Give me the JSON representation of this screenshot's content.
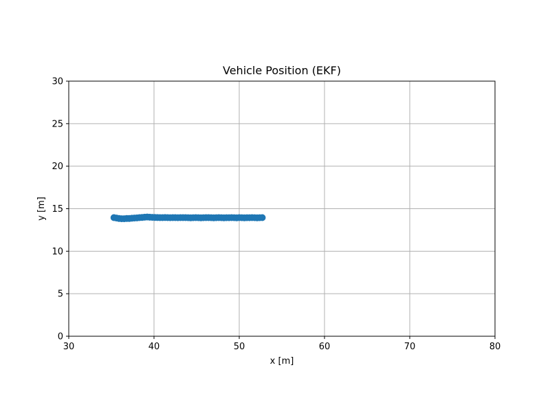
{
  "chart_data": {
    "type": "scatter",
    "title": "Vehicle Position (EKF)",
    "xlabel": "x [m]",
    "ylabel": "y [m]",
    "xlim": [
      30,
      80
    ],
    "ylim": [
      0,
      30
    ],
    "xticks": [
      30,
      40,
      50,
      60,
      70,
      80
    ],
    "yticks": [
      0,
      5,
      10,
      15,
      20,
      25,
      30
    ],
    "xtick_labels": [
      "30",
      "40",
      "50",
      "60",
      "70",
      "80"
    ],
    "ytick_labels": [
      "0",
      "5",
      "10",
      "15",
      "20",
      "25",
      "30"
    ],
    "grid": true,
    "colors": {
      "marker": "#1f77b4",
      "grid": "#b0b0b0",
      "axes": "#000000"
    },
    "series": [
      {
        "x": [
          35.3,
          35.6,
          35.9,
          36.2,
          36.5,
          36.8,
          37.1,
          37.4,
          37.7,
          38.0,
          38.3,
          38.6,
          38.9,
          39.2,
          39.5,
          39.8,
          40.1,
          40.4,
          40.7,
          41.0,
          41.3,
          41.6,
          41.9,
          42.2,
          42.5,
          42.8,
          43.1,
          43.4,
          43.7,
          44.0,
          44.3,
          44.6,
          44.9,
          45.2,
          45.5,
          45.8,
          46.1,
          46.4,
          46.7,
          47.0,
          47.3,
          47.6,
          47.9,
          48.2,
          48.5,
          48.8,
          49.1,
          49.4,
          49.7,
          50.0,
          50.3,
          50.6,
          50.9,
          51.2,
          51.5,
          51.8,
          52.1,
          52.4,
          52.7
        ],
        "y": [
          13.95,
          13.9,
          13.85,
          13.82,
          13.82,
          13.85,
          13.85,
          13.88,
          13.9,
          13.92,
          13.95,
          13.97,
          14.0,
          14.02,
          14.0,
          13.98,
          13.97,
          13.96,
          13.95,
          13.95,
          13.96,
          13.95,
          13.94,
          13.95,
          13.95,
          13.94,
          13.95,
          13.95,
          13.95,
          13.94,
          13.93,
          13.94,
          13.95,
          13.94,
          13.93,
          13.94,
          13.95,
          13.95,
          13.94,
          13.93,
          13.94,
          13.95,
          13.94,
          13.93,
          13.94,
          13.94,
          13.95,
          13.94,
          13.93,
          13.95,
          13.94,
          13.93,
          13.94,
          13.94,
          13.95,
          13.94,
          13.93,
          13.94,
          13.95
        ]
      }
    ]
  }
}
